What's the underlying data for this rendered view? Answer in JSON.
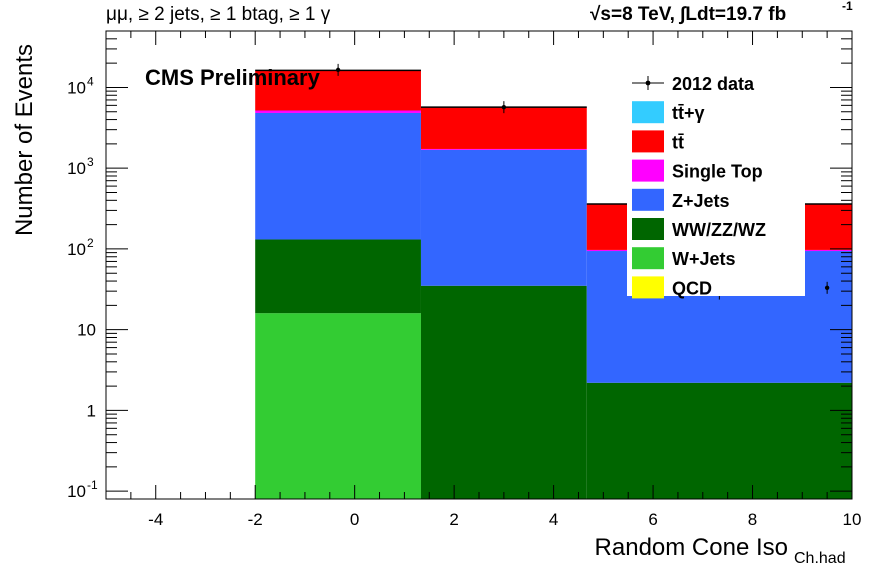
{
  "chart_data": {
    "type": "bar",
    "stacked": true,
    "title": "",
    "header_left": "μμ, ≥ 2 jets, ≥ 1 btag, ≥ 1 γ",
    "header_right": "√s=8 TeV,  ∫Ldt=19.7 fb",
    "header_right_sup": "-1",
    "label": "CMS Preliminary",
    "xlabel": "Random Cone Iso",
    "xlabel_sub": "Ch.had",
    "ylabel": "Number of Events",
    "xlim": [
      -5,
      10
    ],
    "ylim": [
      0.08,
      50000
    ],
    "yscale": "log",
    "grid": false,
    "legend_position": "top-right",
    "x_ticks": [
      "-4",
      "-2",
      "0",
      "2",
      "4",
      "6",
      "8",
      "10"
    ],
    "y_ticks": [
      {
        "base": "10",
        "exp": "-1"
      },
      {
        "base": "1",
        "exp": ""
      },
      {
        "base": "10",
        "exp": ""
      },
      {
        "base": "10",
        "exp": "2"
      },
      {
        "base": "10",
        "exp": "3"
      },
      {
        "base": "10",
        "exp": "4"
      }
    ],
    "bin_edges": [
      -2,
      1.333,
      4.667,
      10
    ],
    "series": [
      {
        "name": "QCD",
        "color": "#ffff00",
        "values": [
          0,
          0,
          0
        ]
      },
      {
        "name": "W+Jets",
        "color": "#33cc33",
        "values": [
          16,
          0,
          0
        ]
      },
      {
        "name": "WW/ZZ/WZ",
        "color": "#006600",
        "values": [
          115,
          35,
          2.2
        ]
      },
      {
        "name": "Z+Jets",
        "color": "#3366ff",
        "values": [
          4700,
          1650,
          92
        ]
      },
      {
        "name": "Single Top",
        "color": "#ff00ff",
        "values": [
          350,
          45,
          3
        ]
      },
      {
        "name": "tt̄",
        "color": "#ff0000",
        "values": [
          11000,
          3950,
          260
        ]
      },
      {
        "name": "tt̄+γ",
        "color": "#33ccff",
        "values": [
          80,
          25,
          3
        ]
      }
    ],
    "data": {
      "name": "2012 data",
      "x": [
        -0.333,
        3.0,
        7.333,
        9.5
      ],
      "y": [
        16500,
        5700,
        28,
        33
      ]
    },
    "legend_order": [
      "2012 data",
      "tt̄+γ",
      "tt̄",
      "Single Top",
      "Z+Jets",
      "WW/ZZ/WZ",
      "W+Jets",
      "QCD"
    ]
  }
}
